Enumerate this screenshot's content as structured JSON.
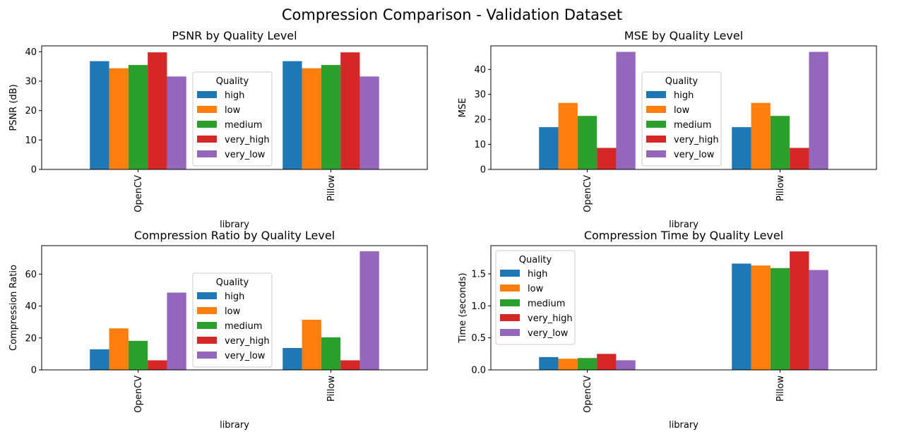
{
  "suptitle": "Compression Comparison - Validation Dataset",
  "colors": {
    "high": "#1f77b4",
    "low": "#ff7f0e",
    "medium": "#2ca02c",
    "very_high": "#d62728",
    "very_low": "#9467bd"
  },
  "chart_data": [
    {
      "type": "bar",
      "title": "PSNR by Quality Level",
      "xlabel": "library",
      "ylabel": "PSNR (dB)",
      "categories": [
        "OpenCV",
        "Pillow"
      ],
      "ylim": [
        0,
        42
      ],
      "yticks": [
        0,
        10,
        20,
        30,
        40
      ],
      "ytick_labels": [
        "0",
        "10",
        "20",
        "30",
        "40"
      ],
      "legend": {
        "title": "Quality",
        "placement": "center"
      },
      "series": [
        {
          "name": "high",
          "values": [
            36.8,
            36.8
          ]
        },
        {
          "name": "low",
          "values": [
            34.4,
            34.4
          ]
        },
        {
          "name": "medium",
          "values": [
            35.5,
            35.5
          ]
        },
        {
          "name": "very_high",
          "values": [
            39.8,
            39.8
          ]
        },
        {
          "name": "very_low",
          "values": [
            31.6,
            31.6
          ]
        }
      ]
    },
    {
      "type": "bar",
      "title": "MSE by Quality Level",
      "xlabel": "library",
      "ylabel": "MSE",
      "categories": [
        "OpenCV",
        "Pillow"
      ],
      "ylim": [
        0,
        49.4
      ],
      "yticks": [
        0,
        10,
        20,
        30,
        40
      ],
      "ytick_labels": [
        "0",
        "10",
        "20",
        "30",
        "40"
      ],
      "legend": {
        "title": "Quality",
        "placement": "center"
      },
      "series": [
        {
          "name": "high",
          "values": [
            16.9,
            16.9
          ]
        },
        {
          "name": "low",
          "values": [
            26.6,
            26.6
          ]
        },
        {
          "name": "medium",
          "values": [
            21.4,
            21.4
          ]
        },
        {
          "name": "very_high",
          "values": [
            8.6,
            8.6
          ]
        },
        {
          "name": "very_low",
          "values": [
            47.0,
            47.0
          ]
        }
      ]
    },
    {
      "type": "bar",
      "title": "Compression Ratio by Quality Level",
      "xlabel": "library",
      "ylabel": "Compression Ratio",
      "categories": [
        "OpenCV",
        "Pillow"
      ],
      "ylim": [
        0,
        77.8
      ],
      "yticks": [
        0,
        20,
        40,
        60
      ],
      "ytick_labels": [
        "0",
        "20",
        "40",
        "60"
      ],
      "legend": {
        "title": "Quality",
        "placement": "center"
      },
      "series": [
        {
          "name": "high",
          "values": [
            12.9,
            13.7
          ]
        },
        {
          "name": "low",
          "values": [
            26.0,
            31.4
          ]
        },
        {
          "name": "medium",
          "values": [
            18.2,
            20.4
          ]
        },
        {
          "name": "very_high",
          "values": [
            6.0,
            6.0
          ]
        },
        {
          "name": "very_low",
          "values": [
            48.4,
            74.3
          ]
        }
      ]
    },
    {
      "type": "bar",
      "title": "Compression Time by Quality Level",
      "xlabel": "library",
      "ylabel": "Time (seconds)",
      "categories": [
        "OpenCV",
        "Pillow"
      ],
      "ylim": [
        0,
        1.94
      ],
      "yticks": [
        0,
        0.5,
        1.0,
        1.5
      ],
      "ytick_labels": [
        "0.0",
        "0.5",
        "1.0",
        "1.5"
      ],
      "legend": {
        "title": "Quality",
        "placement": "upper left"
      },
      "series": [
        {
          "name": "high",
          "values": [
            0.2,
            1.66
          ]
        },
        {
          "name": "low",
          "values": [
            0.175,
            1.63
          ]
        },
        {
          "name": "medium",
          "values": [
            0.185,
            1.59
          ]
        },
        {
          "name": "very_high",
          "values": [
            0.25,
            1.85
          ]
        },
        {
          "name": "very_low",
          "values": [
            0.15,
            1.56
          ]
        }
      ]
    }
  ]
}
